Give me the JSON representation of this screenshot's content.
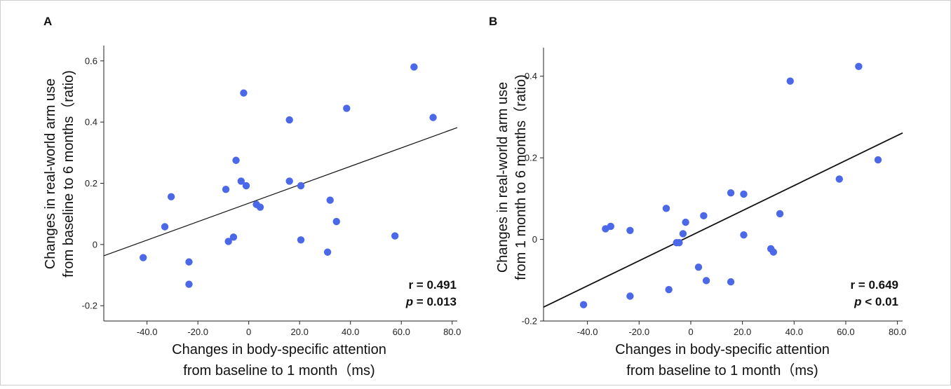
{
  "chart_data": [
    {
      "type": "scatter",
      "panel_label": "A",
      "xlabel_lines": [
        "Changes in body-specific attention",
        "from baseline to 1 month（ms)"
      ],
      "ylabel_lines": [
        "Changes in real-world arm use",
        "from baseline to 6 months（ratio)"
      ],
      "xlim": [
        -57,
        82
      ],
      "ylim": [
        -0.25,
        0.65
      ],
      "xticks": [
        -40,
        -20,
        0,
        20,
        40,
        60,
        80
      ],
      "xtick_labels": [
        "-40.0",
        "-20.0",
        "0",
        "20.0",
        "40.0",
        "60.0",
        "80.0"
      ],
      "yticks": [
        -0.2,
        0,
        0.2,
        0.4,
        0.6
      ],
      "ytick_labels": [
        "-0.2",
        "0",
        "0.2",
        "0.4",
        "0.6"
      ],
      "points": [
        {
          "x": -41.5,
          "y": -0.043
        },
        {
          "x": -33.0,
          "y": 0.058
        },
        {
          "x": -30.5,
          "y": 0.156
        },
        {
          "x": -23.5,
          "y": -0.057
        },
        {
          "x": -23.5,
          "y": -0.13
        },
        {
          "x": -9.0,
          "y": 0.18
        },
        {
          "x": -8.0,
          "y": 0.01
        },
        {
          "x": -6.0,
          "y": 0.024
        },
        {
          "x": -5.0,
          "y": 0.275
        },
        {
          "x": -3.0,
          "y": 0.207
        },
        {
          "x": -2.0,
          "y": 0.495
        },
        {
          "x": -1.0,
          "y": 0.192
        },
        {
          "x": 3.0,
          "y": 0.131
        },
        {
          "x": 4.5,
          "y": 0.122
        },
        {
          "x": 16.0,
          "y": 0.207
        },
        {
          "x": 16.0,
          "y": 0.407
        },
        {
          "x": 20.5,
          "y": 0.192
        },
        {
          "x": 20.5,
          "y": 0.015
        },
        {
          "x": 31.0,
          "y": -0.025
        },
        {
          "x": 32.0,
          "y": 0.145
        },
        {
          "x": 34.5,
          "y": 0.075
        },
        {
          "x": 38.5,
          "y": 0.445
        },
        {
          "x": 57.5,
          "y": 0.028
        },
        {
          "x": 65.0,
          "y": 0.58
        },
        {
          "x": 72.5,
          "y": 0.415
        }
      ],
      "regression_line": {
        "x": [
          -57,
          82
        ],
        "y": [
          -0.037,
          0.382
        ]
      },
      "point_color": "#4a68e8",
      "line_color": "#111111",
      "stats": {
        "r_text": "r = 0.491",
        "p_label": "p",
        "p_value_text": " = 0.013"
      }
    },
    {
      "type": "scatter",
      "panel_label": "B",
      "xlabel_lines": [
        "Changes in body-specific attention",
        "from baseline to 1 month（ms)"
      ],
      "ylabel_lines": [
        "Changes in real-world arm use",
        "from 1 month to 6 months（ratio)"
      ],
      "xlim": [
        -57,
        82
      ],
      "ylim": [
        -0.2,
        0.47
      ],
      "xticks": [
        -40,
        -20,
        0,
        20,
        40,
        60,
        80
      ],
      "xtick_labels": [
        "-40.0",
        "-20.0",
        "0",
        "20.0",
        "40.0",
        "60.0",
        "80.0"
      ],
      "yticks": [
        -0.2,
        0,
        0.2,
        0.4
      ],
      "ytick_labels": [
        "-0.2",
        "0",
        "0.2",
        "0.4"
      ],
      "points": [
        {
          "x": -41.5,
          "y": -0.16
        },
        {
          "x": -33.0,
          "y": 0.026
        },
        {
          "x": -31.0,
          "y": 0.032
        },
        {
          "x": -23.5,
          "y": 0.022
        },
        {
          "x": -23.5,
          "y": -0.139
        },
        {
          "x": -9.5,
          "y": 0.076
        },
        {
          "x": -8.5,
          "y": -0.123
        },
        {
          "x": -5.5,
          "y": -0.008
        },
        {
          "x": -4.5,
          "y": -0.008
        },
        {
          "x": -3.0,
          "y": 0.014
        },
        {
          "x": -2.0,
          "y": 0.042
        },
        {
          "x": 3.0,
          "y": -0.068
        },
        {
          "x": 5.0,
          "y": 0.058
        },
        {
          "x": 6.0,
          "y": -0.101
        },
        {
          "x": 15.5,
          "y": 0.114
        },
        {
          "x": 15.5,
          "y": -0.104
        },
        {
          "x": 20.5,
          "y": 0.111
        },
        {
          "x": 20.5,
          "y": 0.011
        },
        {
          "x": 31.0,
          "y": -0.023
        },
        {
          "x": 32.0,
          "y": -0.031
        },
        {
          "x": 34.5,
          "y": 0.063
        },
        {
          "x": 38.5,
          "y": 0.388
        },
        {
          "x": 57.5,
          "y": 0.148
        },
        {
          "x": 65.0,
          "y": 0.424
        },
        {
          "x": 72.5,
          "y": 0.195
        }
      ],
      "regression_line": {
        "x": [
          -57,
          82
        ],
        "y": [
          -0.166,
          0.261
        ]
      },
      "point_color": "#4a68e8",
      "line_color": "#111111",
      "stats": {
        "r_text": "r = 0.649",
        "p_label": "p",
        "p_value_text": " < 0.01"
      }
    }
  ]
}
